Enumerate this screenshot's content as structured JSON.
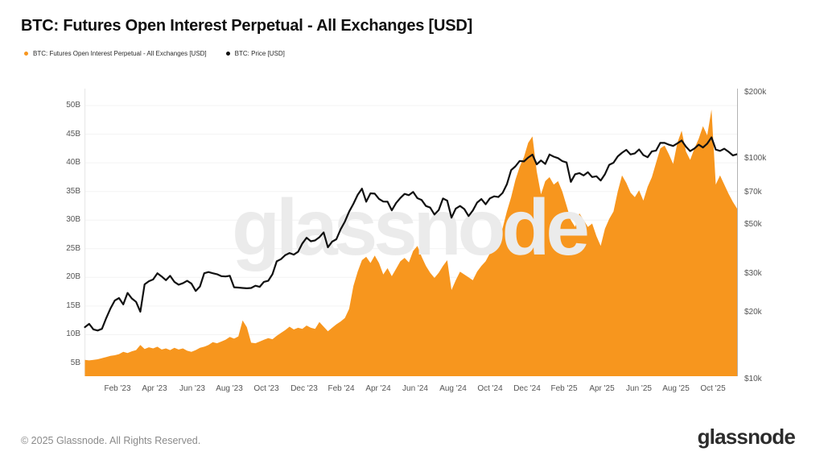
{
  "header": {
    "title": "BTC: Futures Open Interest Perpetual - All Exchanges [USD]"
  },
  "legend": {
    "oi_label": "BTC: Futures Open Interest Perpetual - All Exchanges [USD]",
    "price_label": "BTC: Price [USD]"
  },
  "watermark": {
    "text": "glassnode"
  },
  "footer": {
    "copyright": "© 2025 Glassnode. All Rights Reserved.",
    "logo_text": "glassnode"
  },
  "ui": {
    "grid_color": "#f3f3f3",
    "left_border_color": "#ececec",
    "right_border_color": "#b2b2b2",
    "watermark_color": "#ebebeb",
    "axis_text_color": "#555555",
    "background": "#ffffff"
  },
  "chart_data": {
    "type": "area+line",
    "title": "BTC: Futures Open Interest Perpetual - All Exchanges [USD]",
    "grid": "horizontal-faint",
    "legend_position": "top-left",
    "x_ticks": {
      "labels": [
        "Feb '23",
        "Apr '23",
        "Jun '23",
        "Aug '23",
        "Oct '23",
        "Dec '23",
        "Feb '24",
        "Apr '24",
        "Jun '24",
        "Aug '24",
        "Oct '24",
        "Dec '24",
        "Feb '25",
        "Apr '25",
        "Jun '25",
        "Aug '25",
        "Oct '25"
      ],
      "fractions": [
        0.0502,
        0.1073,
        0.1643,
        0.2214,
        0.2785,
        0.3356,
        0.3927,
        0.4498,
        0.5069,
        0.564,
        0.621,
        0.6781,
        0.7352,
        0.7923,
        0.8494,
        0.9065,
        0.9636
      ]
    },
    "y_left": {
      "scale": "linear",
      "unit": "billion USD",
      "ticks": [
        5,
        10,
        15,
        20,
        25,
        30,
        35,
        40,
        45,
        50
      ],
      "tick_labels": [
        "5B",
        "10B",
        "15B",
        "20B",
        "25B",
        "30B",
        "35B",
        "40B",
        "45B",
        "50B"
      ],
      "ylim": [
        2.75,
        52.95
      ]
    },
    "y_right": {
      "scale": "log",
      "unit": "thousand USD",
      "ticks": [
        10,
        20,
        30,
        50,
        70,
        100,
        200
      ],
      "tick_labels": [
        "$10k",
        "$20k",
        "$30k",
        "$50k",
        "$70k",
        "$100k",
        "$200k"
      ],
      "ylim": [
        10.3,
        208
      ]
    },
    "x_range": {
      "start": "Dec 2022",
      "end": "Nov 2025",
      "interval": "weekly"
    },
    "series": [
      {
        "name": "BTC: Futures Open Interest Perpetual - All Exchanges [USD]",
        "type": "area",
        "axis": "left",
        "unit": "B USD",
        "color": "#F7961E",
        "values": [
          5.6,
          5.5,
          5.6,
          5.7,
          5.9,
          6.1,
          6.3,
          6.4,
          6.6,
          7.0,
          6.8,
          7.1,
          7.3,
          8.2,
          7.5,
          7.8,
          7.6,
          7.9,
          7.4,
          7.6,
          7.3,
          7.7,
          7.4,
          7.6,
          7.2,
          7.0,
          7.3,
          7.7,
          7.9,
          8.2,
          8.7,
          8.5,
          8.8,
          9.1,
          9.6,
          9.3,
          9.7,
          12.5,
          11.3,
          8.6,
          8.5,
          8.8,
          9.1,
          9.4,
          9.2,
          9.8,
          10.3,
          10.8,
          11.4,
          10.9,
          11.2,
          11.0,
          11.6,
          11.2,
          11.0,
          12.2,
          11.4,
          10.6,
          11.2,
          11.8,
          12.3,
          12.9,
          14.5,
          18.5,
          21.0,
          23.0,
          23.6,
          22.5,
          23.8,
          22.5,
          20.5,
          21.6,
          20.2,
          21.5,
          22.8,
          23.4,
          22.6,
          24.6,
          25.5,
          23.6,
          22.0,
          20.8,
          19.9,
          20.8,
          22.0,
          23.0,
          17.8,
          19.5,
          21.0,
          20.5,
          20.0,
          19.5,
          21.0,
          22.0,
          22.8,
          24.2,
          25.8,
          27.0,
          28.6,
          31.5,
          34.0,
          37.0,
          39.3,
          41.0,
          43.5,
          44.6,
          38.5,
          34.5,
          36.8,
          37.5,
          36.2,
          36.8,
          35.0,
          32.5,
          30.0,
          28.8,
          31.2,
          30.0,
          28.8,
          29.4,
          27.2,
          25.5,
          28.5,
          30.2,
          31.5,
          35.0,
          37.8,
          36.5,
          34.8,
          34.0,
          35.2,
          33.4,
          35.8,
          37.5,
          40.0,
          42.5,
          43.0,
          41.5,
          39.8,
          43.5,
          45.6,
          42.0,
          40.5,
          42.5,
          44.2,
          46.4,
          44.8,
          49.3,
          36.2,
          37.8,
          36.2,
          34.6,
          33.2,
          32.0
        ]
      },
      {
        "name": "BTC: Price [USD]",
        "type": "line",
        "axis": "right",
        "unit": "k USD",
        "color": "#111111",
        "values": [
          17.2,
          17.8,
          16.8,
          16.6,
          16.9,
          18.9,
          20.9,
          22.7,
          23.3,
          21.8,
          24.6,
          23.2,
          22.4,
          20.2,
          26.9,
          27.8,
          28.3,
          30.2,
          29.2,
          28.1,
          29.4,
          27.6,
          26.8,
          27.2,
          27.9,
          27.1,
          25.1,
          26.3,
          30.2,
          30.6,
          30.2,
          29.9,
          29.3,
          29.2,
          29.4,
          26.1,
          26.0,
          25.9,
          25.8,
          25.9,
          26.5,
          26.2,
          27.6,
          27.9,
          29.9,
          34.2,
          35.0,
          36.5,
          37.3,
          36.7,
          37.8,
          41.2,
          43.8,
          42.2,
          42.6,
          44.0,
          46.3,
          39.6,
          42.0,
          43.1,
          47.8,
          51.8,
          57.5,
          62.4,
          68.5,
          73.1,
          63.8,
          69.6,
          69.4,
          65.7,
          63.9,
          63.8,
          58.3,
          62.9,
          66.3,
          69.2,
          68.3,
          70.6,
          66.2,
          64.9,
          61.0,
          60.0,
          55.8,
          58.5,
          66.0,
          64.5,
          54.0,
          59.4,
          61.0,
          59.1,
          54.9,
          58.2,
          63.2,
          65.6,
          62.1,
          66.1,
          67.5,
          67.0,
          69.9,
          76.5,
          88.7,
          92.3,
          97.7,
          97.2,
          101.2,
          104.4,
          94.3,
          98.2,
          94.7,
          104.5,
          102.1,
          100.6,
          97.5,
          96.1,
          78.5,
          85.0,
          86.0,
          83.9,
          86.8,
          82.5,
          83.2,
          79.6,
          85.1,
          93.8,
          95.9,
          102.5,
          106.4,
          109.7,
          104.6,
          105.7,
          110.2,
          103.9,
          101.5,
          108.0,
          108.9,
          118.0,
          117.9,
          115.8,
          114.2,
          117.4,
          121.0,
          113.5,
          108.2,
          111.3,
          115.8,
          112.4,
          117.0,
          125.0,
          110.0,
          108.5,
          111.0,
          107.5,
          103.5,
          104.8
        ]
      }
    ]
  }
}
